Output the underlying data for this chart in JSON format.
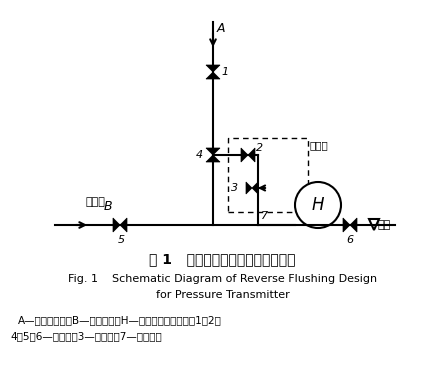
{
  "title_cn": "图 1   压力变送器反冲水设计示意图",
  "title_en_1": "Fig. 1    Schematic Diagram of Reverse Flushing Design",
  "title_en_2": "for Pressure Transmitter",
  "caption_1": "A—接过程压力；B—接反冲水；H—压力变送器高压侧；1、2、",
  "caption_2": "4、5、6—截止阀；3—排污阀；7—排污丝堵",
  "bg_color": "#ffffff",
  "line_color": "#000000"
}
